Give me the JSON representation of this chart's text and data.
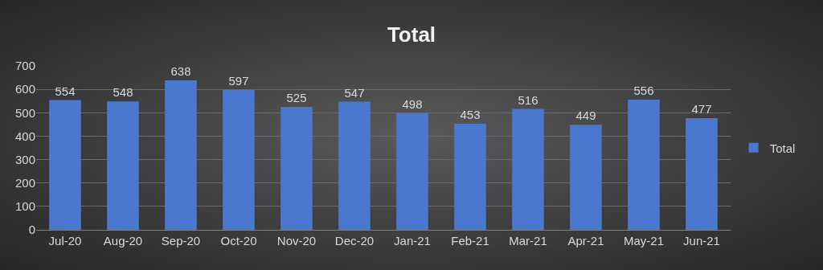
{
  "chart_data": {
    "type": "bar",
    "title": "Total",
    "categories": [
      "Jul-20",
      "Aug-20",
      "Sep-20",
      "Oct-20",
      "Nov-20",
      "Dec-20",
      "Jan-21",
      "Feb-21",
      "Mar-21",
      "Apr-21",
      "May-21",
      "Jun-21"
    ],
    "series": [
      {
        "name": "Total",
        "color": "#4a78d0",
        "values": [
          554,
          548,
          638,
          597,
          525,
          547,
          498,
          453,
          516,
          449,
          556,
          477
        ]
      }
    ],
    "ylim": [
      0,
      700
    ],
    "yticks": [
      0,
      100,
      200,
      300,
      400,
      500,
      600,
      700
    ],
    "grid": "y",
    "legend": "right",
    "data_labels": true
  }
}
